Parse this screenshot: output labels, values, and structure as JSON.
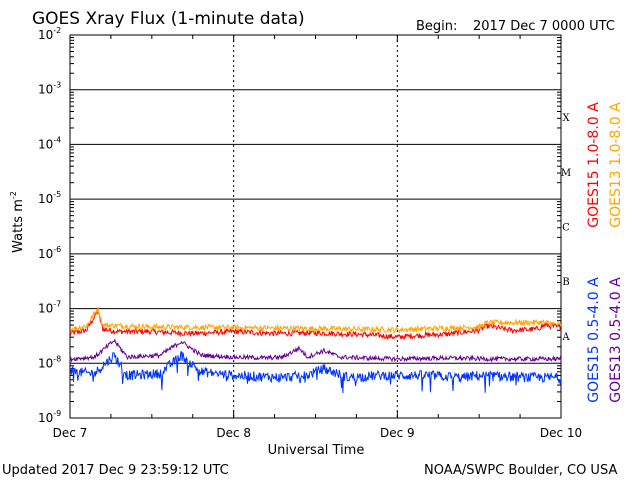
{
  "chart_data": {
    "type": "line",
    "title": "GOES Xray Flux (1-minute data)",
    "begin_label": "Begin:",
    "begin_value": "2017 Dec 7 0000 UTC",
    "xlabel": "Universal Time",
    "ylabel": "Watts m",
    "ylabel_sup": "-2",
    "yscale": "log",
    "ylim": [
      1e-09,
      0.01
    ],
    "y_ticks": [
      {
        "mantissa": "10",
        "exp": "-9"
      },
      {
        "mantissa": "10",
        "exp": "-8"
      },
      {
        "mantissa": "10",
        "exp": "-7"
      },
      {
        "mantissa": "10",
        "exp": "-6"
      },
      {
        "mantissa": "10",
        "exp": "-5"
      },
      {
        "mantissa": "10",
        "exp": "-4"
      },
      {
        "mantissa": "10",
        "exp": "-3"
      },
      {
        "mantissa": "10",
        "exp": "-2"
      }
    ],
    "x_ticks": [
      "Dec 7",
      "Dec 8",
      "Dec 9",
      "Dec 10"
    ],
    "xlim_days": [
      0,
      3
    ],
    "flare_classes": [
      "A",
      "B",
      "C",
      "M",
      "X"
    ],
    "grid": "horizontal lines at each decade, vertical dotted lines at day boundaries",
    "series": [
      {
        "name": "GOES15 1.0-8.0 A",
        "color": "#ff0000",
        "x_days": [
          0,
          0.1,
          0.17,
          0.2,
          0.3,
          0.5,
          0.75,
          1.0,
          1.25,
          1.5,
          1.75,
          1.9,
          2.0,
          2.1,
          2.3,
          2.5,
          2.55,
          2.7,
          2.85,
          2.9,
          3.0
        ],
        "y": [
          3.5e-08,
          4e-08,
          9e-08,
          4.2e-08,
          3.8e-08,
          3.8e-08,
          3.5e-08,
          3.8e-08,
          3.5e-08,
          3.6e-08,
          3.4e-08,
          3.2e-08,
          3e-08,
          3.2e-08,
          3.4e-08,
          4e-08,
          4.8e-08,
          4e-08,
          4.2e-08,
          5e-08,
          4.5e-08
        ]
      },
      {
        "name": "GOES13 1.0-8.0 A",
        "color": "#ffa500",
        "x_days": [
          0,
          0.1,
          0.17,
          0.2,
          0.5,
          1.0,
          1.5,
          2.0,
          2.5,
          2.55,
          2.9,
          3.0
        ],
        "y": [
          4.2e-08,
          4.8e-08,
          1e-07,
          5e-08,
          4.6e-08,
          4.5e-08,
          4.3e-08,
          4.1e-08,
          4.6e-08,
          5.5e-08,
          5.6e-08,
          5e-08
        ]
      },
      {
        "name": "GOES15 0.5-4.0 A",
        "color": "#0033ff",
        "x_days": [
          0,
          0.15,
          0.27,
          0.35,
          0.45,
          0.55,
          0.68,
          0.8,
          1.0,
          1.3,
          1.45,
          1.55,
          1.7,
          1.9,
          2.2,
          2.4,
          2.5,
          2.6,
          2.8,
          3.0
        ],
        "y": [
          7e-09,
          6.5e-09,
          1.4e-08,
          6e-09,
          6.2e-09,
          6.5e-09,
          1.4e-08,
          7e-09,
          6e-09,
          5.5e-09,
          6e-09,
          8e-09,
          5.5e-09,
          6e-09,
          6e-09,
          5.5e-09,
          6e-09,
          5.8e-09,
          5.5e-09,
          5.5e-09
        ]
      },
      {
        "name": "GOES13 0.5-4.0 A",
        "color": "#660099",
        "x_days": [
          0,
          0.15,
          0.27,
          0.35,
          0.55,
          0.68,
          0.8,
          1.0,
          1.2,
          1.3,
          1.4,
          1.45,
          1.55,
          1.65,
          1.8,
          2.0,
          2.3,
          2.6,
          2.9,
          3.0
        ],
        "y": [
          1.2e-08,
          1.3e-08,
          2.6e-08,
          1.3e-08,
          1.4e-08,
          2.5e-08,
          1.4e-08,
          1.3e-08,
          1.25e-08,
          1.3e-08,
          1.9e-08,
          1.3e-08,
          1.7e-08,
          1.3e-08,
          1.25e-08,
          1.2e-08,
          1.25e-08,
          1.2e-08,
          1.2e-08,
          1.2e-08
        ]
      }
    ]
  },
  "footer": {
    "updated": "Updated 2017 Dec  9 23:59:12 UTC",
    "source": "NOAA/SWPC Boulder, CO USA"
  }
}
